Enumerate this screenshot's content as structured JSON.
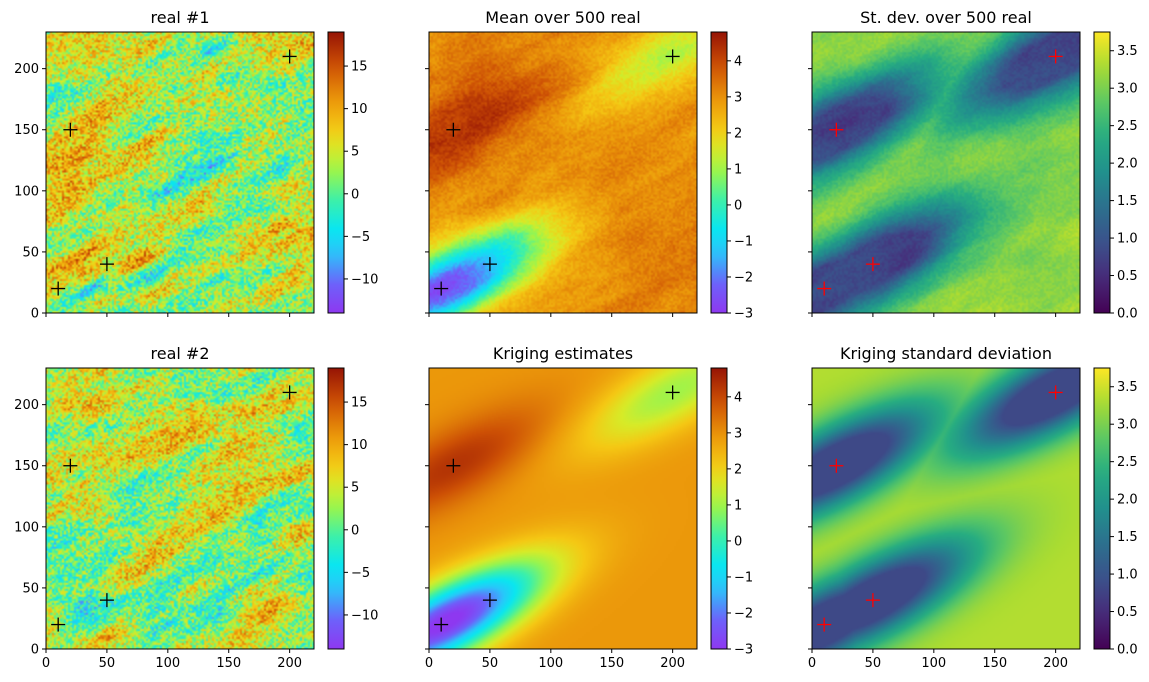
{
  "chart_data": [
    {
      "type": "heatmap",
      "title": "real #1",
      "xlim": [
        0,
        220
      ],
      "ylim": [
        0,
        230
      ],
      "xticks": [
        0,
        50,
        100,
        150,
        200
      ],
      "yticks": [
        0,
        50,
        100,
        150,
        200
      ],
      "xlabel": "",
      "ylabel": "",
      "show_x_tick_labels": false,
      "show_y_tick_labels": true,
      "field": "real1",
      "vmin": -14,
      "vmax": 19,
      "colormap": "turbo-like",
      "colorbar_ticks": [
        -10,
        -5,
        0,
        5,
        10,
        15
      ],
      "points": [
        {
          "x": 10,
          "y": 20
        },
        {
          "x": 20,
          "y": 150
        },
        {
          "x": 50,
          "y": 40
        },
        {
          "x": 200,
          "y": 210
        }
      ],
      "point_color": "#000000"
    },
    {
      "type": "heatmap",
      "title": "Mean over 500 real",
      "xlim": [
        0,
        220
      ],
      "ylim": [
        0,
        230
      ],
      "xticks": [
        0,
        50,
        100,
        150,
        200
      ],
      "yticks": [
        0,
        50,
        100,
        150,
        200
      ],
      "xlabel": "",
      "ylabel": "",
      "show_x_tick_labels": false,
      "show_y_tick_labels": false,
      "field": "mean",
      "vmin": -3,
      "vmax": 4.8,
      "colormap": "turbo-like",
      "colorbar_ticks": [
        -3,
        -2,
        -1,
        0,
        1,
        2,
        3,
        4
      ],
      "points": [
        {
          "x": 10,
          "y": 20
        },
        {
          "x": 20,
          "y": 150
        },
        {
          "x": 50,
          "y": 40
        },
        {
          "x": 200,
          "y": 210
        }
      ],
      "point_color": "#000000"
    },
    {
      "type": "heatmap",
      "title": "St. dev. over 500 real",
      "xlim": [
        0,
        220
      ],
      "ylim": [
        0,
        230
      ],
      "xticks": [
        0,
        50,
        100,
        150,
        200
      ],
      "yticks": [
        0,
        50,
        100,
        150,
        200
      ],
      "xlabel": "",
      "ylabel": "",
      "show_x_tick_labels": false,
      "show_y_tick_labels": false,
      "field": "std",
      "vmin": 0,
      "vmax": 3.75,
      "colormap": "viridis",
      "colorbar_ticks": [
        "0.0",
        "0.5",
        "1.0",
        "1.5",
        "2.0",
        "2.5",
        "3.0",
        "3.5"
      ],
      "points": [
        {
          "x": 10,
          "y": 20
        },
        {
          "x": 20,
          "y": 150
        },
        {
          "x": 50,
          "y": 40
        },
        {
          "x": 200,
          "y": 210
        }
      ],
      "point_color": "#ff0000"
    },
    {
      "type": "heatmap",
      "title": "real #2",
      "xlim": [
        0,
        220
      ],
      "ylim": [
        0,
        230
      ],
      "xticks": [
        0,
        50,
        100,
        150,
        200
      ],
      "yticks": [
        0,
        50,
        100,
        150,
        200
      ],
      "xlabel": "",
      "ylabel": "",
      "show_x_tick_labels": true,
      "show_y_tick_labels": true,
      "field": "real2",
      "vmin": -14,
      "vmax": 19,
      "colormap": "turbo-like",
      "colorbar_ticks": [
        -10,
        -5,
        0,
        5,
        10,
        15
      ],
      "points": [
        {
          "x": 10,
          "y": 20
        },
        {
          "x": 20,
          "y": 150
        },
        {
          "x": 50,
          "y": 40
        },
        {
          "x": 200,
          "y": 210
        }
      ],
      "point_color": "#000000"
    },
    {
      "type": "heatmap",
      "title": "Kriging estimates",
      "xlim": [
        0,
        220
      ],
      "ylim": [
        0,
        230
      ],
      "xticks": [
        0,
        50,
        100,
        150,
        200
      ],
      "yticks": [
        0,
        50,
        100,
        150,
        200
      ],
      "xlabel": "",
      "ylabel": "",
      "show_x_tick_labels": true,
      "show_y_tick_labels": false,
      "field": "krig",
      "vmin": -3,
      "vmax": 4.8,
      "colormap": "turbo-like",
      "colorbar_ticks": [
        -3,
        -2,
        -1,
        0,
        1,
        2,
        3,
        4
      ],
      "points": [
        {
          "x": 10,
          "y": 20
        },
        {
          "x": 20,
          "y": 150
        },
        {
          "x": 50,
          "y": 40
        },
        {
          "x": 200,
          "y": 210
        }
      ],
      "point_color": "#000000"
    },
    {
      "type": "heatmap",
      "title": "Kriging standard deviation",
      "xlim": [
        0,
        220
      ],
      "ylim": [
        0,
        230
      ],
      "xticks": [
        0,
        50,
        100,
        150,
        200
      ],
      "yticks": [
        0,
        50,
        100,
        150,
        200
      ],
      "xlabel": "",
      "ylabel": "",
      "show_x_tick_labels": true,
      "show_y_tick_labels": false,
      "field": "kstd",
      "vmin": 0,
      "vmax": 3.75,
      "colormap": "viridis",
      "colorbar_ticks": [
        "0.0",
        "0.5",
        "1.0",
        "1.5",
        "2.0",
        "2.5",
        "3.0",
        "3.5"
      ],
      "points": [
        {
          "x": 10,
          "y": 20
        },
        {
          "x": 20,
          "y": 150
        },
        {
          "x": 50,
          "y": 40
        },
        {
          "x": 200,
          "y": 210
        }
      ],
      "point_color": "#ff0000"
    }
  ]
}
